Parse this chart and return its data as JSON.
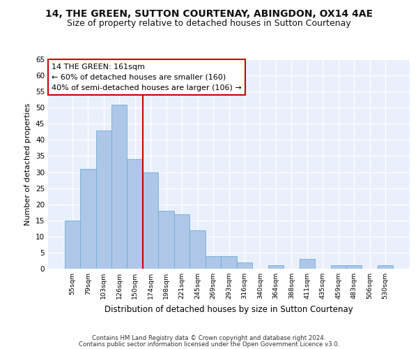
{
  "title": "14, THE GREEN, SUTTON COURTENAY, ABINGDON, OX14 4AE",
  "subtitle": "Size of property relative to detached houses in Sutton Courtenay",
  "xlabel": "Distribution of detached houses by size in Sutton Courtenay",
  "ylabel": "Number of detached properties",
  "categories": [
    "55sqm",
    "79sqm",
    "103sqm",
    "126sqm",
    "150sqm",
    "174sqm",
    "198sqm",
    "221sqm",
    "245sqm",
    "269sqm",
    "293sqm",
    "316sqm",
    "340sqm",
    "364sqm",
    "388sqm",
    "411sqm",
    "435sqm",
    "459sqm",
    "483sqm",
    "506sqm",
    "530sqm"
  ],
  "values": [
    15,
    31,
    43,
    51,
    34,
    30,
    18,
    17,
    12,
    4,
    4,
    2,
    0,
    1,
    0,
    3,
    0,
    1,
    1,
    0,
    1
  ],
  "bar_color": "#aec6e8",
  "bar_edgecolor": "#6aaed6",
  "vline_x": 4.5,
  "vline_color": "#cc0000",
  "annotation_text": "14 THE GREEN: 161sqm\n← 60% of detached houses are smaller (160)\n40% of semi-detached houses are larger (106) →",
  "ylim": [
    0,
    65
  ],
  "yticks": [
    0,
    5,
    10,
    15,
    20,
    25,
    30,
    35,
    40,
    45,
    50,
    55,
    60,
    65
  ],
  "footer1": "Contains HM Land Registry data © Crown copyright and database right 2024.",
  "footer2": "Contains public sector information licensed under the Open Government Licence v3.0.",
  "bg_color": "#eaf0fb",
  "grid_color": "#ffffff",
  "title_fontsize": 10,
  "subtitle_fontsize": 9,
  "annotation_fontsize": 8
}
